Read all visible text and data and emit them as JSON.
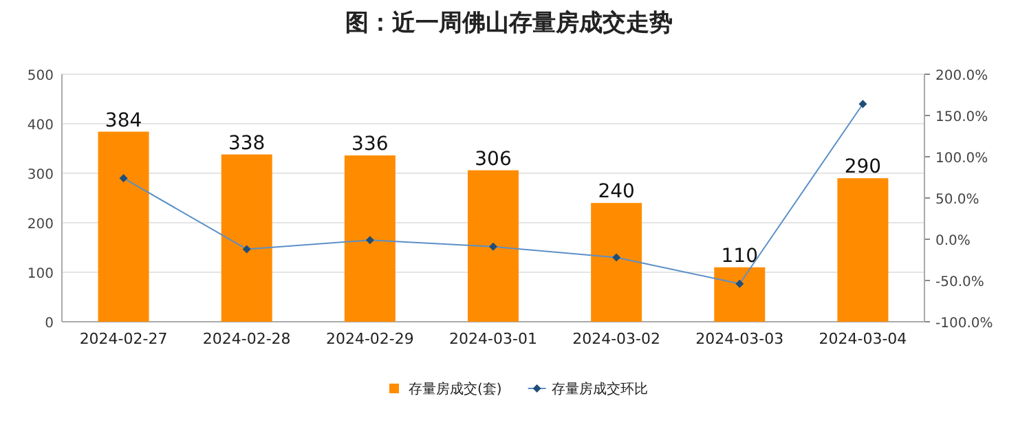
{
  "chart_data": {
    "type": "bar",
    "title": "图：近一周佛山存量房成交走势",
    "categories": [
      "2024-02-27",
      "2024-02-28",
      "2024-02-29",
      "2024-03-01",
      "2024-03-02",
      "2024-03-03",
      "2024-03-04"
    ],
    "series": [
      {
        "name": "存量房成交(套)",
        "color": "#ff8c00",
        "values": [
          384,
          338,
          336,
          306,
          240,
          110,
          290
        ],
        "value_labels": [
          "384",
          "338",
          "336",
          "306",
          "240",
          "110",
          "290"
        ]
      },
      {
        "name": "存量房成交环比",
        "type": "line",
        "axis": "y2",
        "color": "#5b8fc7",
        "marker": "diamond",
        "values": [
          74,
          -12,
          -1,
          -9,
          -22,
          -54,
          164
        ]
      }
    ],
    "ylim": [
      0,
      500
    ],
    "yticks": [
      0,
      100,
      200,
      300,
      400,
      500
    ],
    "y2lim": [
      -100,
      200
    ],
    "y2ticks": [
      {
        "value": -100,
        "label": "-100.0%"
      },
      {
        "value": -50,
        "label": "-50.0%"
      },
      {
        "value": 0,
        "label": "0.0%"
      },
      {
        "value": 50,
        "label": "50.0%"
      },
      {
        "value": 100,
        "label": "100.0%"
      },
      {
        "value": 150,
        "label": "150.0%"
      },
      {
        "value": 200,
        "label": "200.0%"
      }
    ],
    "grid": "y",
    "legend": "bottom"
  }
}
